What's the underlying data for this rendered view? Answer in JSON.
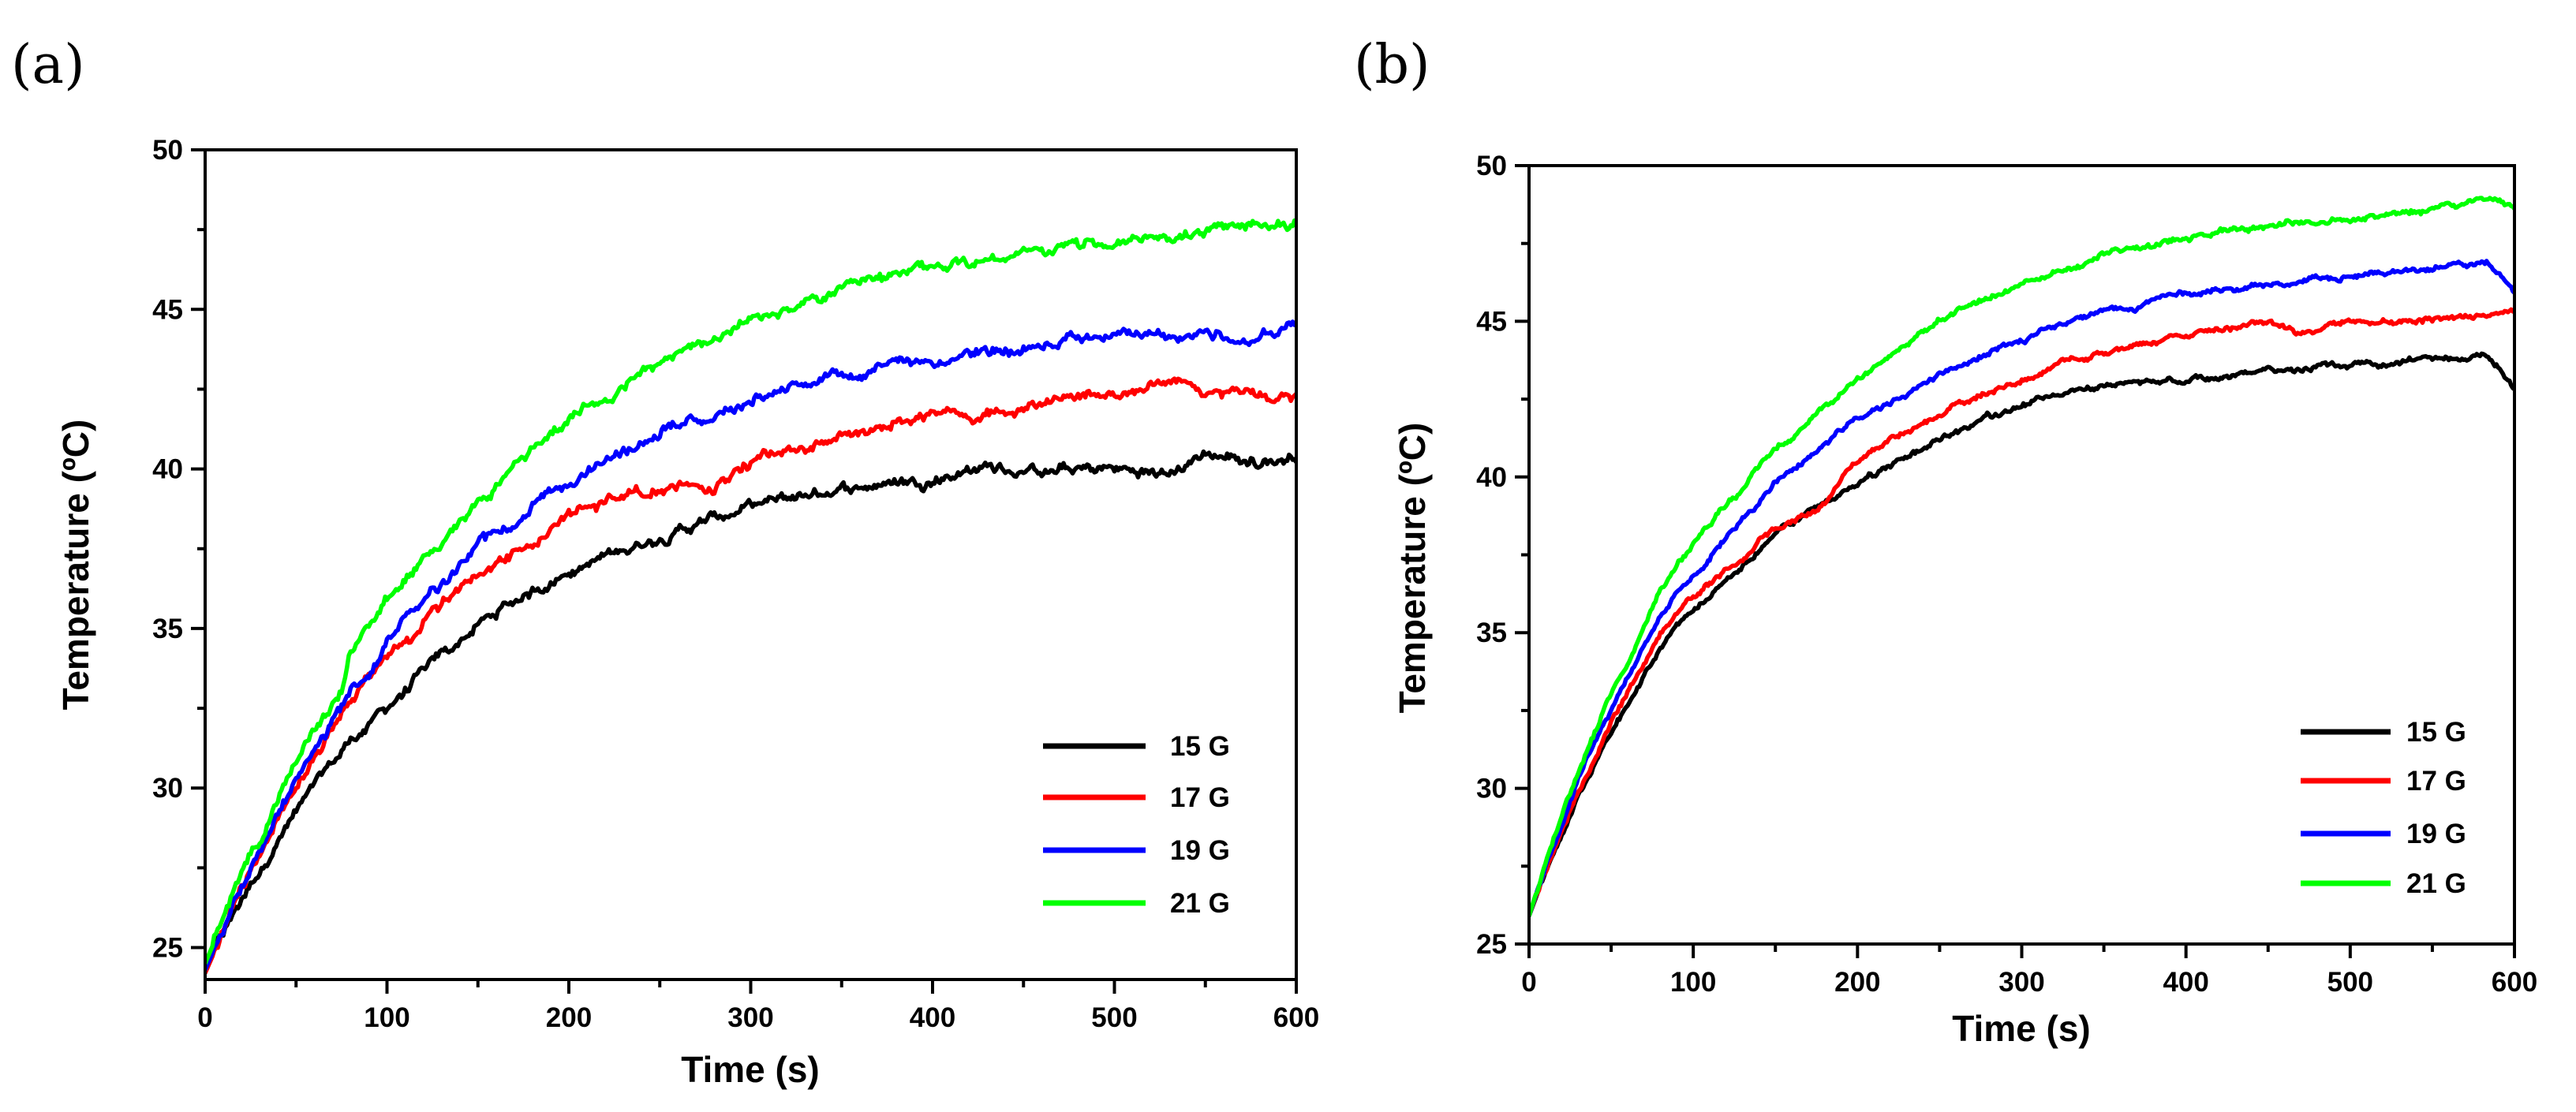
{
  "chart_data": [
    {
      "type": "line",
      "panel_label": "(a)",
      "xlabel": "Time (s)",
      "ylabel": "Temperature (ºC)",
      "xlim": [
        0,
        600
      ],
      "ylim": [
        24,
        50
      ],
      "xticks": [
        0,
        100,
        200,
        300,
        400,
        500,
        600
      ],
      "yticks": [
        25,
        30,
        35,
        40,
        45,
        50
      ],
      "grid": false,
      "legend_position": "bottom-right",
      "series": [
        {
          "name": "15 G",
          "color": "#000000",
          "noise": 0.22,
          "x": [
            0,
            20,
            40,
            60,
            80,
            100,
            120,
            150,
            180,
            200,
            250,
            300,
            350,
            400,
            430,
            450,
            500,
            530,
            550,
            580,
            600
          ],
          "y": [
            24.3,
            26.5,
            28.4,
            30.0,
            31.5,
            32.5,
            33.6,
            35.1,
            36.2,
            36.8,
            37.9,
            38.8,
            39.4,
            39.7,
            40.1,
            39.9,
            40.0,
            39.8,
            40.5,
            40.2,
            40.4
          ]
        },
        {
          "name": "17 G",
          "color": "#ff0000",
          "noise": 0.22,
          "x": [
            0,
            20,
            40,
            60,
            80,
            100,
            120,
            150,
            180,
            200,
            250,
            280,
            300,
            350,
            400,
            450,
            500,
            530,
            550,
            580,
            600
          ],
          "y": [
            24.2,
            26.8,
            29.0,
            31.0,
            32.6,
            34.0,
            35.2,
            36.6,
            37.8,
            38.5,
            39.5,
            39.5,
            40.2,
            41.0,
            41.6,
            42.0,
            42.3,
            42.8,
            42.5,
            42.3,
            42.1
          ]
        },
        {
          "name": "19 G",
          "color": "#0000ff",
          "noise": 0.22,
          "x": [
            0,
            20,
            40,
            60,
            80,
            100,
            120,
            150,
            180,
            200,
            250,
            300,
            350,
            400,
            450,
            500,
            550,
            580,
            600
          ],
          "y": [
            24.3,
            26.9,
            29.1,
            31.2,
            33.0,
            34.6,
            35.9,
            37.5,
            38.8,
            39.6,
            41.1,
            42.2,
            43.0,
            43.4,
            43.8,
            44.1,
            44.2,
            44.2,
            44.6
          ]
        },
        {
          "name": "21 G",
          "color": "#00ff00",
          "noise": 0.22,
          "x": [
            0,
            20,
            40,
            60,
            75,
            80,
            100,
            120,
            150,
            180,
            200,
            250,
            300,
            350,
            400,
            450,
            500,
            550,
            600
          ],
          "y": [
            24.5,
            27.2,
            29.6,
            31.7,
            33.0,
            34.2,
            35.8,
            37.2,
            39.0,
            40.6,
            41.6,
            43.3,
            44.6,
            45.6,
            46.3,
            46.8,
            47.1,
            47.4,
            47.8
          ]
        }
      ],
      "legend": [
        "15 G",
        "17 G",
        "19 G",
        "21 G"
      ]
    },
    {
      "type": "line",
      "panel_label": "(b)",
      "xlabel": "Time (s)",
      "ylabel": "Temperature (ºC)",
      "xlim": [
        0,
        600
      ],
      "ylim": [
        25,
        50
      ],
      "xticks": [
        0,
        100,
        200,
        300,
        400,
        500,
        600
      ],
      "yticks": [
        25,
        30,
        35,
        40,
        45,
        50
      ],
      "grid": false,
      "legend_position": "bottom-right",
      "series": [
        {
          "name": "15 G",
          "color": "#000000",
          "noise": 0.12,
          "x": [
            0,
            10,
            30,
            50,
            80,
            100,
            150,
            200,
            250,
            300,
            350,
            400,
            450,
            500,
            550,
            580,
            590,
            600
          ],
          "y": [
            25.9,
            27.3,
            29.8,
            31.8,
            34.5,
            35.7,
            38.2,
            39.8,
            41.2,
            42.3,
            42.9,
            43.1,
            43.4,
            43.6,
            43.8,
            43.9,
            43.5,
            42.9
          ]
        },
        {
          "name": "17 G",
          "color": "#ff0000",
          "noise": 0.12,
          "x": [
            0,
            10,
            30,
            50,
            80,
            100,
            150,
            180,
            190,
            200,
            250,
            300,
            350,
            400,
            450,
            470,
            500,
            550,
            600
          ],
          "y": [
            25.9,
            27.4,
            30.0,
            32.1,
            35.0,
            36.2,
            38.3,
            39.2,
            40.0,
            40.6,
            42.0,
            43.2,
            44.0,
            44.6,
            45.0,
            44.6,
            45.0,
            45.1,
            45.3
          ]
        },
        {
          "name": "19 G",
          "color": "#0000ff",
          "noise": 0.12,
          "x": [
            0,
            10,
            30,
            50,
            80,
            100,
            150,
            200,
            250,
            300,
            350,
            400,
            450,
            500,
            550,
            585,
            600
          ],
          "y": [
            25.9,
            27.5,
            30.3,
            32.6,
            35.6,
            36.9,
            39.8,
            41.9,
            43.3,
            44.4,
            45.3,
            45.9,
            46.2,
            46.4,
            46.7,
            46.8,
            45.9
          ]
        },
        {
          "name": "21 G",
          "color": "#00ff00",
          "noise": 0.12,
          "x": [
            0,
            10,
            30,
            50,
            80,
            100,
            150,
            200,
            250,
            300,
            350,
            400,
            450,
            500,
            550,
            590,
            600
          ],
          "y": [
            25.9,
            27.6,
            30.6,
            33.0,
            36.3,
            37.9,
            40.9,
            43.2,
            45.0,
            46.2,
            47.1,
            47.7,
            48.1,
            48.3,
            48.6,
            48.9,
            48.5
          ]
        }
      ],
      "legend": [
        "15 G",
        "17 G",
        "19 G",
        "21 G"
      ]
    }
  ]
}
